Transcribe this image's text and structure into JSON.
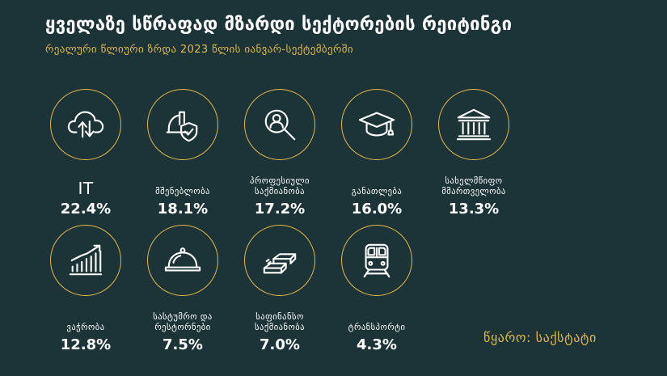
{
  "header": {
    "title": "ყველაზე სწრაფად მზარდი სექტორების რეიტინგი",
    "subtitle": "რეალური წლიური ზრდა 2023 წლის იანვარ-სექტემბერში"
  },
  "colors": {
    "background": "#1c3437",
    "accent": "#e0b84a",
    "text": "#ffffff"
  },
  "chart_data": {
    "type": "table",
    "title": "ყველაზე სწრაფად მზარდი სექტორების რეიტინგი",
    "subtitle": "რეალური წლიური ზრდა 2023 წლის იანვარ-სექტემბერში",
    "unit": "%",
    "items": [
      {
        "label": "IT",
        "value": 22.4,
        "value_label": "22.4%",
        "icon": "cloud-sync-icon"
      },
      {
        "label": "მშენებლობა",
        "value": 18.1,
        "value_label": "18.1%",
        "icon": "hardhat-shield-icon"
      },
      {
        "label": "პროფესიული საქმიანობა",
        "value": 17.2,
        "value_label": "17.2%",
        "icon": "magnifier-person-icon"
      },
      {
        "label": "განათლება",
        "value": 16.0,
        "value_label": "16.0%",
        "icon": "graduation-cap-icon"
      },
      {
        "label": "სახელმწიფო მმართველობა",
        "value": 13.3,
        "value_label": "13.3%",
        "icon": "government-building-icon"
      },
      {
        "label": "ვაჭრობა",
        "value": 12.8,
        "value_label": "12.8%",
        "icon": "growth-bar-chart-icon"
      },
      {
        "label": "სასტუმრო და რესტორნები",
        "value": 7.5,
        "value_label": "7.5%",
        "icon": "food-cloche-icon"
      },
      {
        "label": "საფინანსო საქმიანობა",
        "value": 7.0,
        "value_label": "7.0%",
        "icon": "gold-bars-icon"
      },
      {
        "label": "ტრანსპორტი",
        "value": 4.3,
        "value_label": "4.3%",
        "icon": "train-icon"
      }
    ]
  },
  "footer": {
    "source": "წყარო: საქსტატი"
  }
}
